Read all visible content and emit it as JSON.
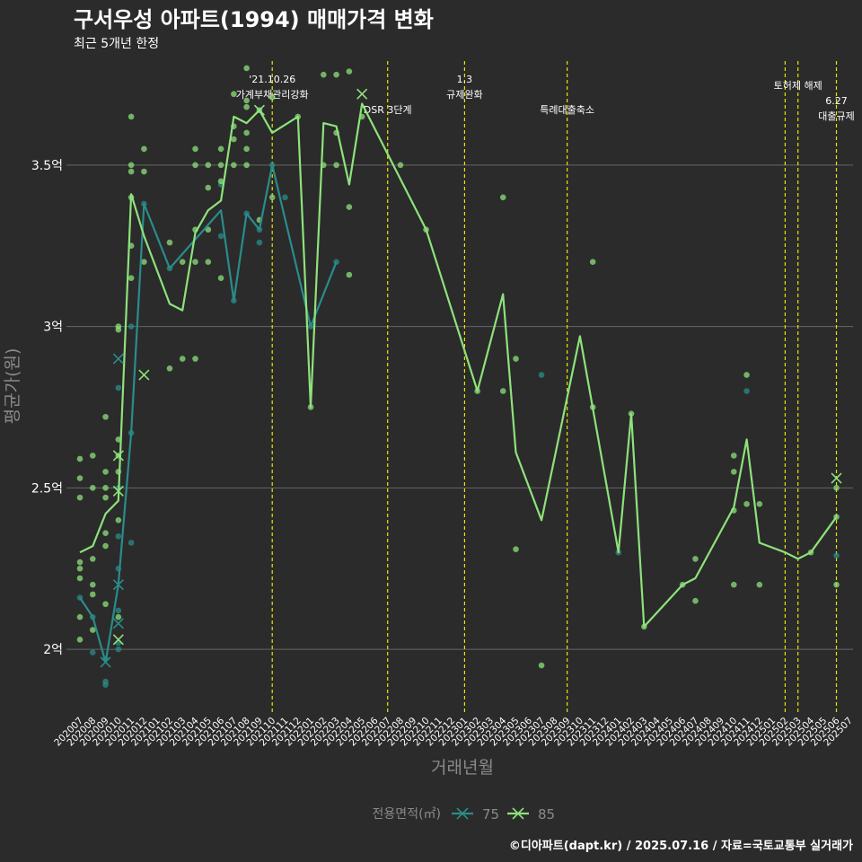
{
  "title": "구서우성 아파트(1994) 매매가격 변화",
  "subtitle": "최근 5개년 한정",
  "caption": "©디아파트(dapt.kr) / 2025.07.16 / 자료=국토교통부 실거래가",
  "colors": {
    "background": "#2b2b2b",
    "grid": "#666666",
    "s75": "#2a8c8a",
    "s85": "#8ee27b",
    "event_line": "#e6e600",
    "text": "#ffffff",
    "axis_title": "#8a8a8a"
  },
  "chart_data": {
    "type": "line",
    "xlabel": "거래년월",
    "ylabel": "평균가(원)",
    "ylim": [
      1.8,
      3.85
    ],
    "y_unit": "억",
    "y_ticks": [
      {
        "value": 2.0,
        "label": "2억"
      },
      {
        "value": 2.5,
        "label": "2.5억"
      },
      {
        "value": 3.0,
        "label": "3억"
      },
      {
        "value": 3.5,
        "label": "3.5억"
      }
    ],
    "x_ticks": [
      "202007",
      "202008",
      "202009",
      "202010",
      "202011",
      "202012",
      "202101",
      "202102",
      "202103",
      "202104",
      "202105",
      "202106",
      "202107",
      "202108",
      "202109",
      "202110",
      "202111",
      "202112",
      "202201",
      "202202",
      "202203",
      "202204",
      "202205",
      "202206",
      "202207",
      "202208",
      "202209",
      "202210",
      "202211",
      "202212",
      "202301",
      "202302",
      "202303",
      "202304",
      "202305",
      "202306",
      "202307",
      "202308",
      "202309",
      "202310",
      "202311",
      "202312",
      "202401",
      "202402",
      "202403",
      "202404",
      "202405",
      "202406",
      "202407",
      "202408",
      "202409",
      "202410",
      "202411",
      "202412",
      "202501",
      "202502",
      "202503",
      "202504",
      "202505",
      "202506",
      "202507"
    ],
    "legend": {
      "title": "전용면적(㎡)",
      "position": "bottom",
      "entries": [
        "75",
        "85"
      ]
    },
    "series": [
      {
        "name": "75",
        "line": [
          [
            "202007",
            2.16
          ],
          [
            "202008",
            2.1
          ],
          [
            "202009",
            1.96
          ],
          [
            "202010",
            2.2
          ],
          [
            "202011",
            2.67
          ],
          [
            "202012",
            3.38
          ],
          [
            "202102",
            3.18
          ],
          [
            "202106",
            3.36
          ],
          [
            "202107",
            3.08
          ],
          [
            "202108",
            3.35
          ],
          [
            "202109",
            3.3
          ],
          [
            "202110",
            3.5
          ],
          [
            "202201",
            3.0
          ],
          [
            "202203",
            3.2
          ]
        ],
        "points": [
          [
            "202007",
            2.16
          ],
          [
            "202008",
            2.1
          ],
          [
            "202008",
            1.99
          ],
          [
            "202009",
            1.89
          ],
          [
            "202009",
            1.9
          ],
          [
            "202009",
            1.97
          ],
          [
            "202010",
            2.0
          ],
          [
            "202010",
            2.02
          ],
          [
            "202010",
            2.12
          ],
          [
            "202010",
            2.25
          ],
          [
            "202010",
            2.35
          ],
          [
            "202010",
            2.81
          ],
          [
            "202010",
            2.5
          ],
          [
            "202011",
            2.33
          ],
          [
            "202011",
            2.67
          ],
          [
            "202011",
            3.0
          ],
          [
            "202012",
            3.38
          ],
          [
            "202102",
            3.18
          ],
          [
            "202106",
            3.28
          ],
          [
            "202106",
            3.44
          ],
          [
            "202107",
            3.08
          ],
          [
            "202108",
            3.35
          ],
          [
            "202109",
            3.26
          ],
          [
            "202109",
            3.3
          ],
          [
            "202110",
            3.5
          ],
          [
            "202111",
            3.4
          ],
          [
            "202201",
            3.0
          ],
          [
            "202203",
            3.2
          ],
          [
            "202307",
            2.85
          ],
          [
            "202401",
            2.3
          ],
          [
            "202411",
            2.8
          ],
          [
            "202506",
            2.29
          ]
        ],
        "cancelled": [
          [
            "202009",
            1.96
          ],
          [
            "202010",
            2.9
          ],
          [
            "202010",
            2.08
          ],
          [
            "202010",
            2.2
          ]
        ]
      },
      {
        "name": "85",
        "line": [
          [
            "202007",
            2.3
          ],
          [
            "202008",
            2.32
          ],
          [
            "202009",
            2.42
          ],
          [
            "202010",
            2.46
          ],
          [
            "202011",
            3.41
          ],
          [
            "202012",
            3.28
          ],
          [
            "202102",
            3.07
          ],
          [
            "202103",
            3.05
          ],
          [
            "202104",
            3.29
          ],
          [
            "202105",
            3.36
          ],
          [
            "202106",
            3.39
          ],
          [
            "202107",
            3.65
          ],
          [
            "202108",
            3.63
          ],
          [
            "202109",
            3.67
          ],
          [
            "202110",
            3.6
          ],
          [
            "202112",
            3.65
          ],
          [
            "202201",
            2.75
          ],
          [
            "202202",
            3.63
          ],
          [
            "202203",
            3.62
          ],
          [
            "202204",
            3.44
          ],
          [
            "202205",
            3.69
          ],
          [
            "202210",
            3.3
          ],
          [
            "202302",
            2.8
          ],
          [
            "202304",
            3.1
          ],
          [
            "202305",
            2.61
          ],
          [
            "202307",
            2.4
          ],
          [
            "202310",
            2.97
          ],
          [
            "202401",
            2.3
          ],
          [
            "202402",
            2.73
          ],
          [
            "202403",
            2.07
          ],
          [
            "202406",
            2.2
          ],
          [
            "202407",
            2.22
          ],
          [
            "202410",
            2.44
          ],
          [
            "202411",
            2.65
          ],
          [
            "202412",
            2.33
          ],
          [
            "202502",
            2.3
          ],
          [
            "202503",
            2.28
          ],
          [
            "202504",
            2.3
          ],
          [
            "202506",
            2.41
          ]
        ],
        "points": [
          [
            "202007",
            2.59
          ],
          [
            "202007",
            2.53
          ],
          [
            "202007",
            2.47
          ],
          [
            "202007",
            2.27
          ],
          [
            "202007",
            2.25
          ],
          [
            "202007",
            2.22
          ],
          [
            "202007",
            2.1
          ],
          [
            "202007",
            2.03
          ],
          [
            "202008",
            2.6
          ],
          [
            "202008",
            2.5
          ],
          [
            "202008",
            2.28
          ],
          [
            "202008",
            2.2
          ],
          [
            "202008",
            2.17
          ],
          [
            "202008",
            2.06
          ],
          [
            "202009",
            2.72
          ],
          [
            "202009",
            2.55
          ],
          [
            "202009",
            2.5
          ],
          [
            "202009",
            2.47
          ],
          [
            "202009",
            2.36
          ],
          [
            "202009",
            2.32
          ],
          [
            "202009",
            2.14
          ],
          [
            "202010",
            3.0
          ],
          [
            "202010",
            2.99
          ],
          [
            "202010",
            2.65
          ],
          [
            "202010",
            2.6
          ],
          [
            "202010",
            2.55
          ],
          [
            "202010",
            2.4
          ],
          [
            "202010",
            2.1
          ],
          [
            "202011",
            3.65
          ],
          [
            "202011",
            3.5
          ],
          [
            "202011",
            3.48
          ],
          [
            "202011",
            3.4
          ],
          [
            "202011",
            3.25
          ],
          [
            "202011",
            3.15
          ],
          [
            "202012",
            3.55
          ],
          [
            "202012",
            3.48
          ],
          [
            "202012",
            3.2
          ],
          [
            "202102",
            3.26
          ],
          [
            "202102",
            2.87
          ],
          [
            "202103",
            3.2
          ],
          [
            "202103",
            2.9
          ],
          [
            "202104",
            3.55
          ],
          [
            "202104",
            3.5
          ],
          [
            "202104",
            3.3
          ],
          [
            "202104",
            3.2
          ],
          [
            "202104",
            2.9
          ],
          [
            "202105",
            3.5
          ],
          [
            "202105",
            3.43
          ],
          [
            "202105",
            3.3
          ],
          [
            "202105",
            3.2
          ],
          [
            "202106",
            3.55
          ],
          [
            "202106",
            3.5
          ],
          [
            "202106",
            3.45
          ],
          [
            "202106",
            3.15
          ],
          [
            "202107",
            3.72
          ],
          [
            "202107",
            3.62
          ],
          [
            "202107",
            3.58
          ],
          [
            "202107",
            3.5
          ],
          [
            "202108",
            3.8
          ],
          [
            "202108",
            3.7
          ],
          [
            "202108",
            3.68
          ],
          [
            "202108",
            3.6
          ],
          [
            "202108",
            3.55
          ],
          [
            "202108",
            3.5
          ],
          [
            "202109",
            3.67
          ],
          [
            "202109",
            3.33
          ],
          [
            "202110",
            3.71
          ],
          [
            "202110",
            3.4
          ],
          [
            "202112",
            3.65
          ],
          [
            "202201",
            2.75
          ],
          [
            "202202",
            3.78
          ],
          [
            "202202",
            3.5
          ],
          [
            "202203",
            3.78
          ],
          [
            "202203",
            3.6
          ],
          [
            "202203",
            3.5
          ],
          [
            "202204",
            3.79
          ],
          [
            "202204",
            3.37
          ],
          [
            "202204",
            3.16
          ],
          [
            "202205",
            3.65
          ],
          [
            "202208",
            3.5
          ],
          [
            "202210",
            3.3
          ],
          [
            "202302",
            2.8
          ],
          [
            "202304",
            3.4
          ],
          [
            "202304",
            2.8
          ],
          [
            "202305",
            2.9
          ],
          [
            "202305",
            2.31
          ],
          [
            "202307",
            1.95
          ],
          [
            "202311",
            3.2
          ],
          [
            "202311",
            2.75
          ],
          [
            "202402",
            2.73
          ],
          [
            "202403",
            2.07
          ],
          [
            "202406",
            2.2
          ],
          [
            "202407",
            2.28
          ],
          [
            "202407",
            2.15
          ],
          [
            "202410",
            2.6
          ],
          [
            "202410",
            2.55
          ],
          [
            "202410",
            2.43
          ],
          [
            "202410",
            2.2
          ],
          [
            "202411",
            2.85
          ],
          [
            "202411",
            2.45
          ],
          [
            "202412",
            2.45
          ],
          [
            "202412",
            2.2
          ],
          [
            "202504",
            2.3
          ],
          [
            "202506",
            2.5
          ],
          [
            "202506",
            2.41
          ],
          [
            "202506",
            2.2
          ]
        ],
        "cancelled": [
          [
            "202109",
            3.67
          ],
          [
            "202205",
            3.72
          ],
          [
            "202010",
            2.6
          ],
          [
            "202010",
            2.49
          ],
          [
            "202010",
            2.03
          ],
          [
            "202012",
            2.85
          ],
          [
            "202506",
            2.53
          ]
        ]
      }
    ],
    "annotations": [
      {
        "x": "202110",
        "lines": [
          "'21.10.26",
          "가계부채관리강화"
        ],
        "level": 0
      },
      {
        "x": "202207",
        "lines": [
          "DSR 3단계"
        ],
        "level": 2
      },
      {
        "x": "202301",
        "lines": [
          "1.3",
          "규제완화"
        ],
        "level": 0
      },
      {
        "x": "202309",
        "lines": [
          "특례대출축소"
        ],
        "level": 2
      },
      {
        "x": "202502",
        "lines": [],
        "level": 0
      },
      {
        "x": "202503",
        "lines": [
          "토허제 해제"
        ],
        "level": 1
      },
      {
        "x": "202506",
        "lines": [
          "6.27",
          "대출규제"
        ],
        "level": 3
      }
    ]
  }
}
